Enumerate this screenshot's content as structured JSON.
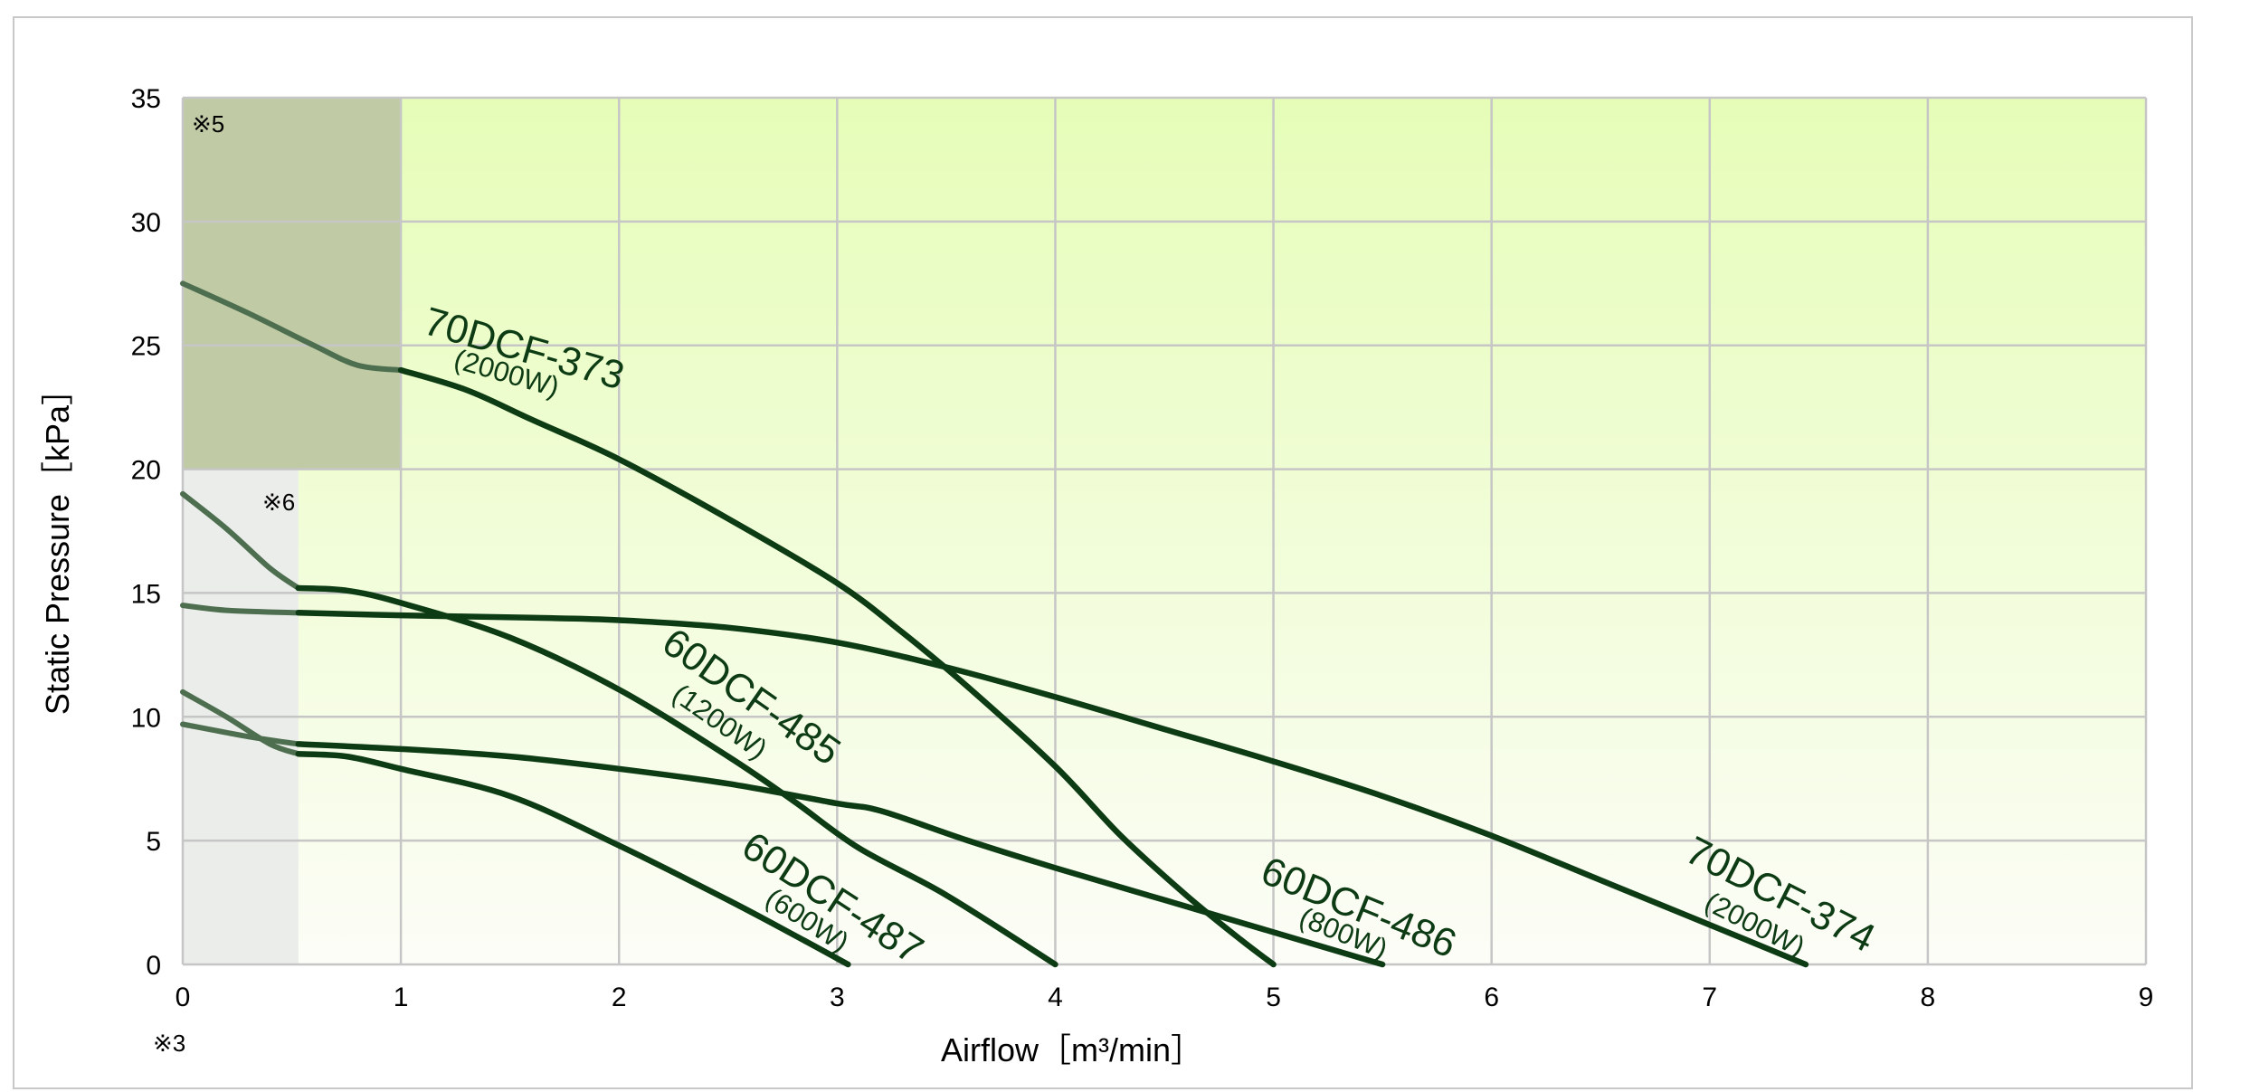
{
  "chart_data": {
    "type": "line",
    "xlabel": "Airflow［m³/min］",
    "ylabel": "Static Pressure［kPa］",
    "xlim": [
      0,
      9
    ],
    "ylim": [
      0,
      35
    ],
    "x_ticks": [
      "0",
      "1",
      "2",
      "3",
      "4",
      "5",
      "6",
      "7",
      "8",
      "9"
    ],
    "y_ticks": [
      "0",
      "5",
      "10",
      "15",
      "20",
      "25",
      "30",
      "35"
    ],
    "grid": true,
    "background": {
      "top_color": "#e6fdb8",
      "bottom_color": "#fcfdf7"
    },
    "notes": [
      {
        "id": "note5",
        "text": "※5"
      },
      {
        "id": "note6",
        "text": "※6"
      },
      {
        "id": "note3",
        "text": "※3"
      }
    ],
    "shaded_regions": [
      {
        "id": "region5",
        "x": [
          0,
          1
        ],
        "y": [
          20,
          35
        ],
        "color": "#c0cba6"
      },
      {
        "id": "region6",
        "x": [
          0,
          0.53
        ],
        "y": [
          0,
          20
        ],
        "color": "#ebedea"
      }
    ],
    "series": [
      {
        "name": "70DCF-373",
        "power": "(2000W)",
        "color": "#0d3b14",
        "x": [
          0,
          0.3,
          0.6,
          0.8,
          1.0,
          1.3,
          1.6,
          2.0,
          2.5,
          3.0,
          3.3,
          3.6,
          4.0,
          4.3,
          4.6,
          4.85,
          5.0
        ],
        "y": [
          27.5,
          26.3,
          25.0,
          24.2,
          24.0,
          23.2,
          22.0,
          20.4,
          18.0,
          15.4,
          13.4,
          11.2,
          8.0,
          5.2,
          2.8,
          1.0,
          0
        ],
        "shaded_until": 1.0
      },
      {
        "name": "70DCF-374",
        "power": "(2000W)",
        "color": "#0d3b14",
        "x": [
          0,
          0.2,
          0.53,
          1.0,
          1.6,
          2.0,
          2.5,
          3.0,
          3.5,
          4.0,
          4.5,
          5.0,
          5.5,
          6.0,
          6.5,
          7.0,
          7.44
        ],
        "y": [
          14.5,
          14.3,
          14.2,
          14.1,
          14.0,
          13.9,
          13.6,
          13.0,
          12.0,
          10.8,
          9.5,
          8.2,
          6.8,
          5.2,
          3.4,
          1.6,
          0
        ],
        "shaded_until": 0.53
      },
      {
        "name": "60DCF-485",
        "power": "(1200W)",
        "color": "#0d3b14",
        "x": [
          0,
          0.2,
          0.4,
          0.53,
          0.75,
          1.0,
          1.5,
          2.0,
          2.5,
          2.8,
          3.1,
          3.5,
          4.0
        ],
        "y": [
          19.0,
          17.6,
          16.0,
          15.2,
          15.1,
          14.6,
          13.2,
          11.1,
          8.4,
          6.6,
          4.7,
          2.8,
          0
        ],
        "shaded_until": 0.53
      },
      {
        "name": "60DCF-486",
        "power": "(800W)",
        "color": "#0d3b14",
        "x": [
          0,
          0.3,
          0.53,
          1.0,
          1.5,
          2.0,
          2.5,
          3.0,
          3.2,
          3.6,
          4.0,
          4.5,
          5.0,
          5.5
        ],
        "y": [
          9.7,
          9.2,
          8.9,
          8.7,
          8.4,
          7.9,
          7.3,
          6.5,
          6.2,
          5.0,
          3.9,
          2.6,
          1.3,
          0
        ],
        "shaded_until": 0.53
      },
      {
        "name": "60DCF-487",
        "power": "(600W)",
        "color": "#0d3b14",
        "x": [
          0,
          0.2,
          0.4,
          0.53,
          0.75,
          1.0,
          1.5,
          2.0,
          2.5,
          2.8,
          3.05
        ],
        "y": [
          11.0,
          10.0,
          8.9,
          8.5,
          8.4,
          7.9,
          6.8,
          4.8,
          2.6,
          1.2,
          0
        ],
        "shaded_until": 0.53
      }
    ]
  }
}
